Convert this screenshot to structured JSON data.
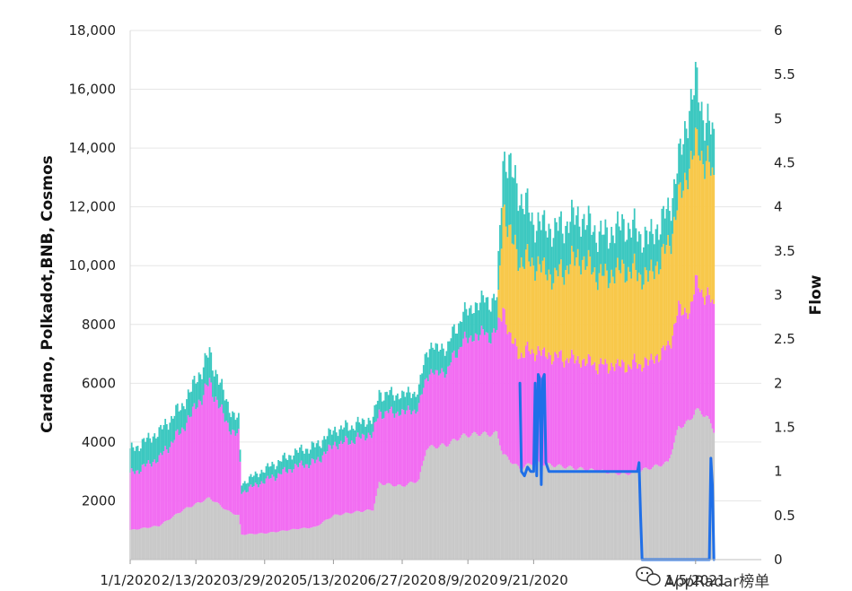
{
  "chart_data": {
    "type": "area",
    "title": "",
    "xlabel": "",
    "ylabel": "Cardano, Polkadot,BNB, Cosmos",
    "y2label": "Flow",
    "stacked": true,
    "grid": "horizontal",
    "ylim": [
      0,
      18000
    ],
    "y2lim": [
      0,
      6
    ],
    "y_ticks": [
      "2000",
      "4000",
      "6000",
      "8000",
      "10,000",
      "12,000",
      "14,000",
      "16,000",
      "18,000"
    ],
    "y2_ticks": [
      "0",
      "0.5",
      "1",
      "1.5",
      "2",
      "2.5",
      "3",
      "3.5",
      "4",
      "4.5",
      "5",
      "5.5",
      "6"
    ],
    "x_tick_labels": [
      "1/1/2020",
      "2/13/2020",
      "3/29/2020",
      "5/13/2020",
      "6/27/2020",
      "8/9/2020",
      "9/21/2020",
      "1/5/2021"
    ],
    "x_ticks": [
      "2020-01-01",
      "2020-02-13",
      "2020-03-29",
      "2020-05-13",
      "2020-06-27",
      "2020-08-09",
      "2020-09-21",
      "2021-01-05"
    ],
    "x_range": [
      "2020-01-01",
      "2021-02-17"
    ],
    "series": [
      {
        "color": "#c9c9c9",
        "points": [
          [
            "2020-01-01",
            1000
          ],
          [
            "2020-01-20",
            1150
          ],
          [
            "2020-02-05",
            1700
          ],
          [
            "2020-02-22",
            2100
          ],
          [
            "2020-03-05",
            1650
          ],
          [
            "2020-03-12",
            1500
          ],
          [
            "2020-03-14",
            850
          ],
          [
            "2020-03-30",
            900
          ],
          [
            "2020-04-20",
            1050
          ],
          [
            "2020-05-01",
            1100
          ],
          [
            "2020-05-13",
            1500
          ],
          [
            "2020-05-25",
            1600
          ],
          [
            "2020-06-08",
            1700
          ],
          [
            "2020-06-12",
            2600
          ],
          [
            "2020-06-27",
            2500
          ],
          [
            "2020-07-08",
            2700
          ],
          [
            "2020-07-13",
            3800
          ],
          [
            "2020-07-26",
            3900
          ],
          [
            "2020-08-05",
            4200
          ],
          [
            "2020-08-18",
            4300
          ],
          [
            "2020-08-22",
            4250
          ],
          [
            "2020-08-28",
            4300
          ],
          [
            "2020-09-01",
            3600
          ],
          [
            "2020-09-05",
            3400
          ],
          [
            "2020-09-12",
            3100
          ],
          [
            "2020-09-21",
            3300
          ],
          [
            "2020-10-05",
            3200
          ],
          [
            "2020-10-20",
            3100
          ],
          [
            "2020-11-05",
            3000
          ],
          [
            "2020-11-20",
            2900
          ],
          [
            "2020-12-05",
            3100
          ],
          [
            "2020-12-18",
            3300
          ],
          [
            "2020-12-25",
            4500
          ],
          [
            "2021-01-01",
            4700
          ],
          [
            "2021-01-05",
            5100
          ],
          [
            "2021-01-12",
            4900
          ],
          [
            "2021-01-17",
            4400
          ]
        ]
      },
      {
        "color": "#f26df2",
        "points": [
          [
            "2020-01-01",
            1900
          ],
          [
            "2020-01-20",
            2300
          ],
          [
            "2020-02-05",
            2800
          ],
          [
            "2020-02-22",
            3900
          ],
          [
            "2020-03-05",
            2900
          ],
          [
            "2020-03-12",
            2700
          ],
          [
            "2020-03-14",
            1450
          ],
          [
            "2020-03-30",
            1800
          ],
          [
            "2020-04-20",
            2150
          ],
          [
            "2020-05-01",
            2200
          ],
          [
            "2020-05-13",
            2400
          ],
          [
            "2020-05-25",
            2450
          ],
          [
            "2020-06-08",
            2600
          ],
          [
            "2020-06-12",
            2400
          ],
          [
            "2020-06-27",
            2500
          ],
          [
            "2020-07-08",
            2450
          ],
          [
            "2020-07-13",
            2500
          ],
          [
            "2020-07-26",
            2500
          ],
          [
            "2020-08-05",
            3200
          ],
          [
            "2020-08-18",
            3400
          ],
          [
            "2020-08-22",
            3400
          ],
          [
            "2020-08-28",
            3400
          ],
          [
            "2020-09-01",
            5100
          ],
          [
            "2020-09-05",
            4200
          ],
          [
            "2020-09-12",
            3900
          ],
          [
            "2020-09-21",
            3800
          ],
          [
            "2020-10-05",
            3700
          ],
          [
            "2020-10-20",
            3700
          ],
          [
            "2020-11-05",
            3600
          ],
          [
            "2020-11-20",
            3700
          ],
          [
            "2020-12-05",
            3600
          ],
          [
            "2020-12-18",
            3900
          ],
          [
            "2020-12-25",
            4000
          ],
          [
            "2021-01-01",
            3700
          ],
          [
            "2021-01-05",
            4300
          ],
          [
            "2021-01-12",
            4100
          ],
          [
            "2021-01-17",
            4200
          ]
        ]
      },
      {
        "color": "#f8c84a",
        "points": [
          [
            "2020-01-01",
            0
          ],
          [
            "2020-01-20",
            0
          ],
          [
            "2020-02-05",
            0
          ],
          [
            "2020-02-22",
            0
          ],
          [
            "2020-03-05",
            0
          ],
          [
            "2020-03-12",
            0
          ],
          [
            "2020-03-14",
            0
          ],
          [
            "2020-03-30",
            0
          ],
          [
            "2020-04-20",
            0
          ],
          [
            "2020-05-01",
            0
          ],
          [
            "2020-05-13",
            0
          ],
          [
            "2020-05-25",
            0
          ],
          [
            "2020-06-08",
            0
          ],
          [
            "2020-06-12",
            0
          ],
          [
            "2020-06-27",
            0
          ],
          [
            "2020-07-08",
            0
          ],
          [
            "2020-07-13",
            0
          ],
          [
            "2020-07-26",
            0
          ],
          [
            "2020-08-05",
            0
          ],
          [
            "2020-08-18",
            0
          ],
          [
            "2020-08-22",
            0
          ],
          [
            "2020-08-28",
            0
          ],
          [
            "2020-09-01",
            3500
          ],
          [
            "2020-09-05",
            3500
          ],
          [
            "2020-09-12",
            3200
          ],
          [
            "2020-09-21",
            3000
          ],
          [
            "2020-10-05",
            2700
          ],
          [
            "2020-10-20",
            3500
          ],
          [
            "2020-11-05",
            3000
          ],
          [
            "2020-11-20",
            3300
          ],
          [
            "2020-12-05",
            2900
          ],
          [
            "2020-12-18",
            3400
          ],
          [
            "2020-12-25",
            3700
          ],
          [
            "2021-01-01",
            5000
          ],
          [
            "2021-01-05",
            4700
          ],
          [
            "2021-01-12",
            4600
          ],
          [
            "2021-01-17",
            4200
          ]
        ]
      },
      {
        "color": "#3cc8c0",
        "points": [
          [
            "2020-01-01",
            800
          ],
          [
            "2020-01-20",
            900
          ],
          [
            "2020-02-05",
            800
          ],
          [
            "2020-02-22",
            1000
          ],
          [
            "2020-03-05",
            700
          ],
          [
            "2020-03-12",
            500
          ],
          [
            "2020-03-14",
            300
          ],
          [
            "2020-03-30",
            400
          ],
          [
            "2020-04-20",
            500
          ],
          [
            "2020-05-01",
            550
          ],
          [
            "2020-05-13",
            500
          ],
          [
            "2020-05-25",
            500
          ],
          [
            "2020-06-08",
            500
          ],
          [
            "2020-06-12",
            650
          ],
          [
            "2020-06-27",
            600
          ],
          [
            "2020-07-08",
            600
          ],
          [
            "2020-07-13",
            900
          ],
          [
            "2020-07-26",
            800
          ],
          [
            "2020-08-05",
            900
          ],
          [
            "2020-08-18",
            1100
          ],
          [
            "2020-08-22",
            1200
          ],
          [
            "2020-08-28",
            1100
          ],
          [
            "2020-09-01",
            1600
          ],
          [
            "2020-09-05",
            2300
          ],
          [
            "2020-09-12",
            2200
          ],
          [
            "2020-09-21",
            1400
          ],
          [
            "2020-10-05",
            1600
          ],
          [
            "2020-10-20",
            1400
          ],
          [
            "2020-11-05",
            1400
          ],
          [
            "2020-11-20",
            1500
          ],
          [
            "2020-12-05",
            1300
          ],
          [
            "2020-12-18",
            1200
          ],
          [
            "2020-12-25",
            1300
          ],
          [
            "2021-01-01",
            2000
          ],
          [
            "2021-01-05",
            2100
          ],
          [
            "2021-01-12",
            1300
          ],
          [
            "2021-01-17",
            1500
          ]
        ]
      }
    ],
    "flow_series": {
      "color": "#1f6fe8",
      "axis": "y2",
      "points": [
        [
          "2020-09-12",
          2.0
        ],
        [
          "2020-09-13",
          1.0
        ],
        [
          "2020-09-15",
          0.95
        ],
        [
          "2020-09-17",
          1.05
        ],
        [
          "2020-09-19",
          1.0
        ],
        [
          "2020-09-21",
          1.0
        ],
        [
          "2020-09-22",
          2.0
        ],
        [
          "2020-09-23",
          0.95
        ],
        [
          "2020-09-24",
          2.1
        ],
        [
          "2020-09-25",
          2.05
        ],
        [
          "2020-09-26",
          0.85
        ],
        [
          "2020-09-27",
          2.05
        ],
        [
          "2020-09-28",
          2.1
        ],
        [
          "2020-09-29",
          1.1
        ],
        [
          "2020-10-01",
          1.0
        ],
        [
          "2020-10-20",
          1.0
        ],
        [
          "2020-11-10",
          1.0
        ],
        [
          "2020-11-28",
          1.0
        ],
        [
          "2020-11-29",
          1.1
        ],
        [
          "2020-11-30",
          0.5
        ],
        [
          "2020-12-01",
          0.0
        ],
        [
          "2020-12-20",
          0.0
        ],
        [
          "2021-01-05",
          0.0
        ],
        [
          "2021-01-12",
          0.0
        ],
        [
          "2021-01-14",
          0.0
        ],
        [
          "2021-01-15",
          1.15
        ],
        [
          "2021-01-16",
          0.85
        ],
        [
          "2021-01-17",
          0.0
        ]
      ]
    }
  },
  "watermark": {
    "icon": "wechat-icon",
    "text": "AppRadar榜单"
  }
}
